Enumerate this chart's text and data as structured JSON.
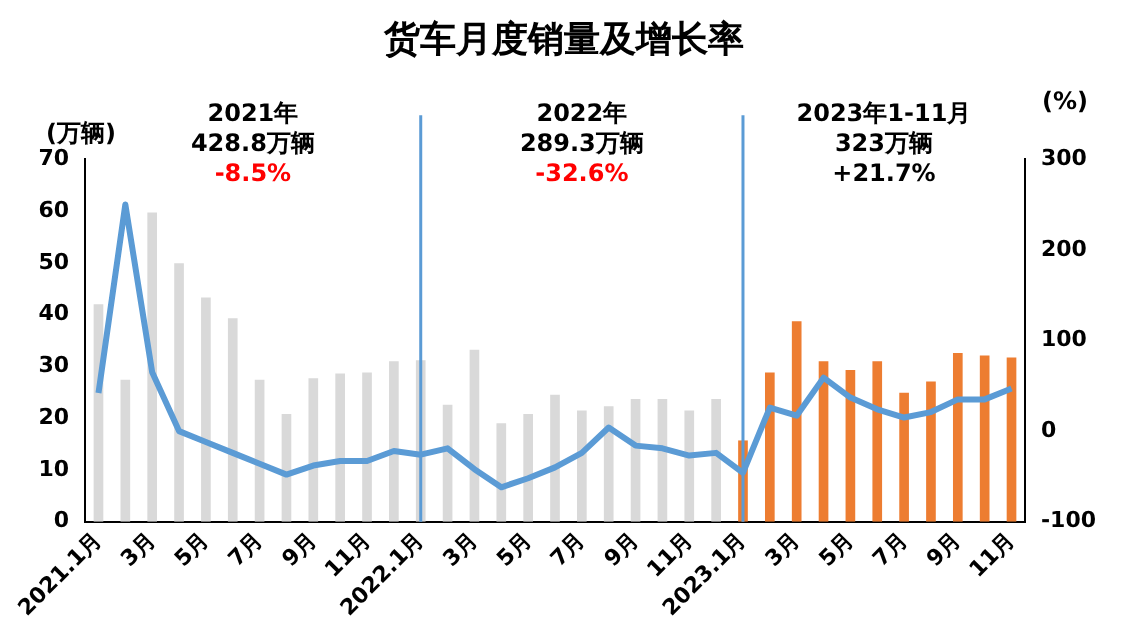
{
  "chart_data": {
    "type": "bar",
    "title": "货车月度销量及增长率",
    "ylabel": "(万辆)",
    "y2label": "(%)",
    "categories": [
      "2021.1月",
      null,
      "3月",
      null,
      "5月",
      null,
      "7月",
      null,
      "9月",
      null,
      "11月",
      null,
      "2022.1月",
      null,
      "3月",
      null,
      "5月",
      null,
      "7月",
      null,
      "9月",
      null,
      "11月",
      null,
      "2023.1月",
      null,
      "3月",
      null,
      "5月",
      null,
      "7月",
      null,
      "9月",
      null,
      "11月"
    ],
    "series": [
      {
        "colors": [
          "#d9d9d9",
          "#d9d9d9",
          "#d9d9d9",
          "#d9d9d9",
          "#d9d9d9",
          "#d9d9d9",
          "#d9d9d9",
          "#d9d9d9",
          "#d9d9d9",
          "#d9d9d9",
          "#d9d9d9",
          "#d9d9d9",
          "#d9d9d9",
          "#d9d9d9",
          "#d9d9d9",
          "#d9d9d9",
          "#d9d9d9",
          "#d9d9d9",
          "#d9d9d9",
          "#d9d9d9",
          "#d9d9d9",
          "#d9d9d9",
          "#d9d9d9",
          "#d9d9d9",
          "#ed7d31",
          "#ed7d31",
          "#ed7d31",
          "#ed7d31",
          "#ed7d31",
          "#ed7d31",
          "#ed7d31",
          "#ed7d31",
          "#ed7d31",
          "#ed7d31",
          "#ed7d31"
        ],
        "values": [
          42,
          27.4,
          59.7,
          49.9,
          43.3,
          39.3,
          27.4,
          20.8,
          27.7,
          28.6,
          28.8,
          31,
          31.2,
          22.6,
          33.2,
          19,
          20.8,
          24.5,
          21.5,
          22.3,
          23.7,
          23.7,
          21.5,
          23.7,
          15.7,
          28.8,
          38.7,
          31,
          29.3,
          31,
          24.9,
          27.1,
          32.6,
          32.1,
          31.7
        ]
      },
      {
        "type": "line",
        "axis": "y2",
        "color": "#5b9bd5",
        "values": [
          42,
          250,
          65,
          0,
          -12,
          -24,
          -36,
          -48,
          -38,
          -33,
          -33,
          -22,
          -26,
          -19,
          -42,
          -62,
          -52,
          -40,
          -24,
          4,
          -16,
          -19,
          -27,
          -24,
          -46,
          26,
          17,
          59,
          37,
          24,
          15,
          21,
          35,
          35,
          47
        ]
      }
    ],
    "ylim": [
      0,
      70
    ],
    "yticks": [
      0,
      10,
      20,
      30,
      40,
      50,
      60,
      70
    ],
    "y2lim": [
      -100,
      300
    ],
    "y2ticks": [
      -100,
      0,
      100,
      200,
      300
    ],
    "ref_lines": [
      {
        "axis": "x",
        "value": "2022.1月",
        "color": "#5b9bd5"
      },
      {
        "axis": "x",
        "value": "2023.1月",
        "color": "#5b9bd5"
      }
    ],
    "annotations": [
      "2021年",
      "428.8万辆",
      "-8.5%",
      "2022年",
      "289.3万辆",
      "-32.6%",
      "2023年1-11月",
      "323万辆",
      "+21.7%"
    ],
    "grid": false,
    "legend": false,
    "marker": "none",
    "line_style": "solid"
  }
}
